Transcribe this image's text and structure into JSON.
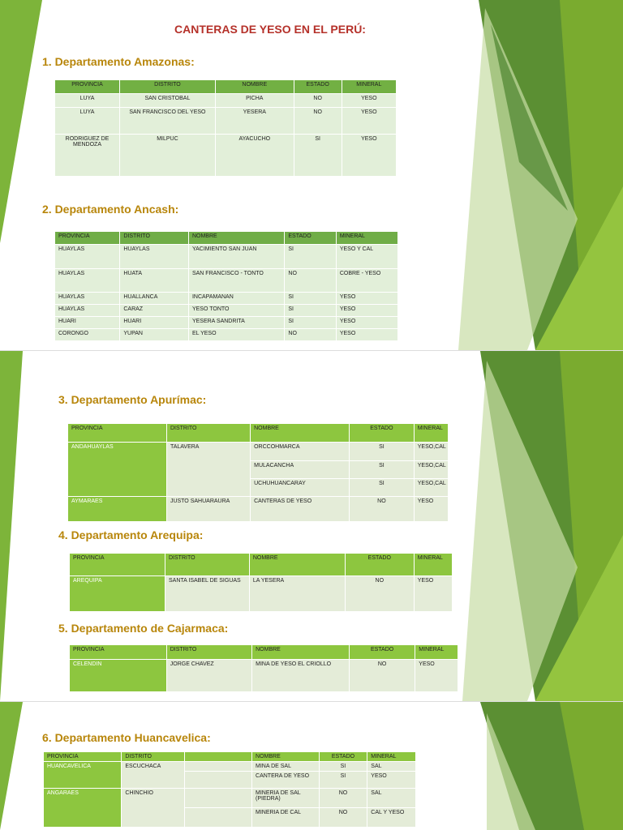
{
  "title": "CANTERAS DE YESO EN EL PERÚ:",
  "sections": [
    {
      "heading": "1. Departamento Amazonas:",
      "table": {
        "header": [
          "PROVINCIA",
          "DISTRITO",
          "NOMBRE",
          "ESTADO",
          "MINERAL"
        ],
        "rows": [
          [
            "LUYA",
            "SAN CRISTOBAL",
            "PICHA",
            "NO",
            "YESO"
          ],
          [
            "LUYA",
            "SAN FRANCISCO DEL YESO",
            "YESERA",
            "NO",
            "YESO"
          ],
          [
            "RODRIGUEZ DE MENDOZA",
            "MILPUC",
            "AYACUCHO",
            "SI",
            "YESO"
          ]
        ]
      }
    },
    {
      "heading": "2. Departamento Ancash:",
      "table": {
        "header": [
          "PROVINCIA",
          "DISTRITO",
          "NOMBRE",
          "ESTADO",
          "MINERAL"
        ],
        "rows": [
          [
            "HUAYLAS",
            "HUAYLAS",
            "YACIMIENTO SAN JUAN",
            "SI",
            "YESO Y CAL"
          ],
          [
            "HUAYLAS",
            "HUATA",
            "SAN FRANCISCO - TONTO",
            "NO",
            "COBRE - YESO"
          ],
          [
            "HUAYLAS",
            "HUALLANCA",
            "INCAPAMANAN",
            "SI",
            "YESO"
          ],
          [
            "HUAYLAS",
            "CARAZ",
            "YESO TONTO",
            "SI",
            "YESO"
          ],
          [
            "HUARI",
            "HUARI",
            "YESERA SANDRITA",
            "SI",
            "YESO"
          ],
          [
            "CORONGO",
            "YUPAN",
            "EL YESO",
            "NO",
            "YESO"
          ]
        ]
      }
    },
    {
      "heading": "3. Departamento Apurímac:",
      "table": {
        "header": [
          "PROVINCIA",
          "DISTRITO",
          "NOMBRE",
          "ESTADO",
          "MINERAL"
        ],
        "rows": [
          [
            "ANDAHUAYLAS",
            "TALAVERA",
            "ORCCOHMARCA",
            "SI",
            "YESO,CAL"
          ],
          [
            "MULACANCHA",
            "SI",
            "YESO,CAL"
          ],
          [
            "UCHUHUANCARAY",
            "SI",
            "YESO,CAL"
          ],
          [
            "AYMARAES",
            "JUSTO SAHUARAURA",
            "CANTERAS DE YESO",
            "NO",
            "YESO"
          ]
        ]
      }
    },
    {
      "heading": "4. Departamento Arequipa:",
      "table": {
        "header": [
          "PROVINCIA",
          "DISTRITO",
          "NOMBRE",
          "ESTADO",
          "MINERAL"
        ],
        "rows": [
          [
            "AREQUIPA",
            "SANTA ISABEL DE SIGUAS",
            "LA YESERA",
            "NO",
            "YESO"
          ]
        ]
      }
    },
    {
      "heading": "5. Departamento de Cajarmaca:",
      "table": {
        "header": [
          "PROVINCIA",
          "DISTRITO",
          "NOMBRE",
          "ESTADO",
          "MINERAL"
        ],
        "rows": [
          [
            "CELENDIN",
            "JORGE CHAVEZ",
            "MINA DE YESO EL CRIOLLO",
            "NO",
            "YESO"
          ]
        ]
      }
    },
    {
      "heading": "6. Departamento Huancavelica:",
      "table": {
        "header": [
          "PROVINCIA",
          "DISTRITO",
          "NOMBRE",
          "ESTADO",
          "MINERAL"
        ],
        "rows": [
          [
            "HUANCAVELICA",
            "ESCUCHACA",
            "MINA DE SAL",
            "SI",
            "SAL"
          ],
          [
            "CANTERA DE YESO",
            "SI",
            "YESO"
          ],
          [
            "ANGARAES",
            "CHINCHIO",
            "MINERIA DE SAL (PIEDRA)",
            "NO",
            "SAL"
          ],
          [
            "MINERIA DE CAL",
            "NO",
            "CAL Y YESO"
          ]
        ]
      }
    }
  ]
}
